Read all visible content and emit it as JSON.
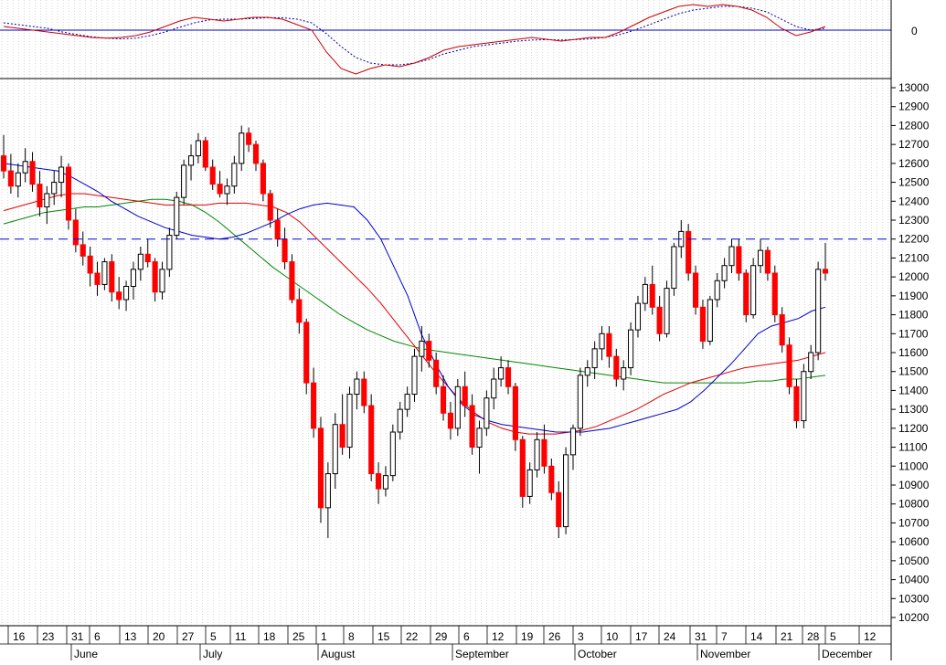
{
  "colors": {
    "grid": "#bcbcbc",
    "up_fill": "#ffffff",
    "down_fill": "#ff0000",
    "wick": "#000000",
    "ma_fast": "#0000cc",
    "ma_mid": "#dd0000",
    "ma_slow": "#008800",
    "level_line": "#0000cc",
    "osc_line": "#cc0000",
    "osc_signal": "#0000aa"
  },
  "chart_data": [
    {
      "type": "candlestick",
      "title": "",
      "ylim": [
        10150,
        13050
      ],
      "yticks": [
        10200,
        10300,
        10400,
        10500,
        10600,
        10700,
        10800,
        10900,
        11000,
        11100,
        11200,
        11300,
        11400,
        11500,
        11600,
        11700,
        11800,
        11900,
        12000,
        12100,
        12200,
        12300,
        12400,
        12500,
        12600,
        12700,
        12800,
        12900,
        13000
      ],
      "week_labels": [
        "16",
        "23",
        "31",
        "6",
        "13",
        "20",
        "27",
        "5",
        "11",
        "18",
        "25",
        "1",
        "8",
        "15",
        "22",
        "29",
        "6",
        "12",
        "19",
        "26",
        "3",
        "10",
        "17",
        "24",
        "31",
        "7",
        "14",
        "21",
        "28",
        "5",
        "12"
      ],
      "month_labels": [
        "June",
        "July",
        "August",
        "September",
        "October",
        "November",
        "December"
      ],
      "horizontal_level": 12200,
      "candles": [
        [
          12640,
          12750,
          12520,
          12560
        ],
        [
          12560,
          12650,
          12440,
          12480
        ],
        [
          12480,
          12600,
          12420,
          12550
        ],
        [
          12550,
          12680,
          12500,
          12610
        ],
        [
          12610,
          12660,
          12450,
          12490
        ],
        [
          12490,
          12560,
          12320,
          12370
        ],
        [
          12370,
          12480,
          12280,
          12440
        ],
        [
          12440,
          12560,
          12380,
          12500
        ],
        [
          12500,
          12640,
          12420,
          12580
        ],
        [
          12580,
          12600,
          12250,
          12300
        ],
        [
          12300,
          12360,
          12130,
          12170
        ],
        [
          12170,
          12240,
          12060,
          12110
        ],
        [
          12110,
          12160,
          11950,
          12020
        ],
        [
          12020,
          12080,
          11900,
          11960
        ],
        [
          11960,
          12100,
          11930,
          12080
        ],
        [
          12080,
          12120,
          11870,
          11920
        ],
        [
          11920,
          12000,
          11830,
          11880
        ],
        [
          11880,
          11980,
          11820,
          11950
        ],
        [
          11950,
          12080,
          11880,
          12040
        ],
        [
          12040,
          12160,
          11980,
          12120
        ],
        [
          12120,
          12200,
          12050,
          12080
        ],
        [
          12080,
          12100,
          11870,
          11920
        ],
        [
          11920,
          12080,
          11880,
          12040
        ],
        [
          12040,
          12260,
          12000,
          12220
        ],
        [
          12220,
          12450,
          12200,
          12420
        ],
        [
          12420,
          12620,
          12380,
          12590
        ],
        [
          12590,
          12700,
          12510,
          12640
        ],
        [
          12640,
          12760,
          12600,
          12720
        ],
        [
          12720,
          12740,
          12560,
          12580
        ],
        [
          12580,
          12620,
          12460,
          12490
        ],
        [
          12490,
          12560,
          12420,
          12440
        ],
        [
          12440,
          12520,
          12380,
          12480
        ],
        [
          12480,
          12640,
          12440,
          12600
        ],
        [
          12600,
          12800,
          12560,
          12760
        ],
        [
          12760,
          12790,
          12660,
          12700
        ],
        [
          12700,
          12720,
          12560,
          12600
        ],
        [
          12600,
          12620,
          12400,
          12440
        ],
        [
          12440,
          12460,
          12260,
          12300
        ],
        [
          12300,
          12360,
          12160,
          12200
        ],
        [
          12200,
          12260,
          12040,
          12080
        ],
        [
          12080,
          12120,
          11860,
          11880
        ],
        [
          11880,
          11940,
          11700,
          11760
        ],
        [
          11760,
          11780,
          11380,
          11440
        ],
        [
          11440,
          11520,
          11150,
          11200
        ],
        [
          11200,
          11260,
          10700,
          10780
        ],
        [
          10780,
          11020,
          10620,
          10960
        ],
        [
          10960,
          11280,
          10880,
          11220
        ],
        [
          11220,
          11380,
          11060,
          11100
        ],
        [
          11100,
          11420,
          11040,
          11380
        ],
        [
          11380,
          11500,
          11300,
          11460
        ],
        [
          11460,
          11500,
          11280,
          11320
        ],
        [
          11320,
          11380,
          10920,
          10960
        ],
        [
          10960,
          11020,
          10800,
          10880
        ],
        [
          10880,
          11000,
          10840,
          10950
        ],
        [
          10950,
          11220,
          10920,
          11180
        ],
        [
          11180,
          11340,
          11140,
          11300
        ],
        [
          11300,
          11420,
          11260,
          11380
        ],
        [
          11380,
          11620,
          11340,
          11580
        ],
        [
          11580,
          11740,
          11500,
          11660
        ],
        [
          11660,
          11700,
          11520,
          11560
        ],
        [
          11560,
          11600,
          11380,
          11420
        ],
        [
          11420,
          11480,
          11240,
          11280
        ],
        [
          11280,
          11340,
          11140,
          11200
        ],
        [
          11200,
          11460,
          11160,
          11420
        ],
        [
          11420,
          11500,
          11260,
          11320
        ],
        [
          11320,
          11380,
          11060,
          11100
        ],
        [
          11100,
          11240,
          10960,
          11200
        ],
        [
          11200,
          11400,
          11160,
          11360
        ],
        [
          11360,
          11520,
          11300,
          11460
        ],
        [
          11460,
          11580,
          11420,
          11520
        ],
        [
          11520,
          11560,
          11380,
          11420
        ],
        [
          11420,
          11440,
          11080,
          11140
        ],
        [
          11140,
          11160,
          10780,
          10840
        ],
        [
          10840,
          11020,
          10800,
          10980
        ],
        [
          10980,
          11180,
          10940,
          11140
        ],
        [
          11140,
          11220,
          10960,
          11000
        ],
        [
          11000,
          11040,
          10820,
          10860
        ],
        [
          10860,
          10920,
          10620,
          10680
        ],
        [
          10680,
          11100,
          10640,
          11060
        ],
        [
          11060,
          11220,
          10980,
          11200
        ],
        [
          11200,
          11520,
          11160,
          11480
        ],
        [
          11480,
          11560,
          11420,
          11520
        ],
        [
          11520,
          11660,
          11460,
          11620
        ],
        [
          11620,
          11740,
          11560,
          11700
        ],
        [
          11700,
          11740,
          11520,
          11580
        ],
        [
          11580,
          11620,
          11420,
          11460
        ],
        [
          11460,
          11560,
          11400,
          11520
        ],
        [
          11520,
          11760,
          11480,
          11720
        ],
        [
          11720,
          11900,
          11680,
          11860
        ],
        [
          11860,
          12000,
          11820,
          11960
        ],
        [
          11960,
          12060,
          11800,
          11840
        ],
        [
          11840,
          11900,
          11660,
          11700
        ],
        [
          11700,
          11980,
          11680,
          11940
        ],
        [
          11940,
          12180,
          11900,
          12160
        ],
        [
          12160,
          12300,
          12100,
          12240
        ],
        [
          12240,
          12280,
          11980,
          12020
        ],
        [
          12020,
          12060,
          11800,
          11840
        ],
        [
          11840,
          11880,
          11620,
          11660
        ],
        [
          11660,
          11900,
          11640,
          11880
        ],
        [
          11880,
          12020,
          11840,
          11980
        ],
        [
          11980,
          12100,
          11940,
          12060
        ],
        [
          12060,
          12200,
          12020,
          12160
        ],
        [
          12160,
          12200,
          11980,
          12020
        ],
        [
          12020,
          12040,
          11760,
          11800
        ],
        [
          11800,
          12100,
          11780,
          12060
        ],
        [
          12060,
          12200,
          12020,
          12140
        ],
        [
          12140,
          12160,
          11980,
          12020
        ],
        [
          12020,
          12060,
          11760,
          11800
        ],
        [
          11800,
          11840,
          11600,
          11640
        ],
        [
          11640,
          11680,
          11380,
          11420
        ],
        [
          11420,
          11460,
          11200,
          11240
        ],
        [
          11240,
          11540,
          11200,
          11500
        ],
        [
          11500,
          11640,
          11460,
          11600
        ],
        [
          11600,
          12080,
          11560,
          12040
        ],
        [
          12040,
          12180,
          11980,
          12020
        ]
      ],
      "ma_fast": [
        12600,
        12590,
        12580,
        12570,
        12560,
        12530,
        12490,
        12450,
        12400,
        12360,
        12320,
        12290,
        12260,
        12240,
        12220,
        12210,
        12200,
        12210,
        12230,
        12260,
        12290,
        12330,
        12360,
        12380,
        12390,
        12380,
        12370,
        12300,
        12200,
        12050,
        11900,
        11700,
        11550,
        11420,
        11330,
        11270,
        11240,
        11220,
        11210,
        11200,
        11190,
        11180,
        11180,
        11180,
        11190,
        11200,
        11220,
        11240,
        11260,
        11280,
        11300,
        11340,
        11400,
        11470,
        11540,
        11620,
        11700,
        11740,
        11760,
        11780,
        11820,
        11840
      ],
      "ma_mid": [
        12350,
        12370,
        12390,
        12410,
        12430,
        12440,
        12440,
        12430,
        12420,
        12410,
        12400,
        12390,
        12380,
        12380,
        12380,
        12380,
        12390,
        12390,
        12390,
        12380,
        12370,
        12340,
        12290,
        12220,
        12150,
        12080,
        12010,
        11940,
        11860,
        11770,
        11680,
        11590,
        11500,
        11420,
        11340,
        11280,
        11230,
        11200,
        11180,
        11170,
        11170,
        11170,
        11180,
        11190,
        11210,
        11240,
        11270,
        11300,
        11340,
        11380,
        11410,
        11440,
        11460,
        11480,
        11500,
        11520,
        11530,
        11540,
        11550,
        11560,
        11580,
        11600
      ],
      "ma_slow": [
        12280,
        12300,
        12320,
        12340,
        12350,
        12360,
        12370,
        12370,
        12380,
        12390,
        12400,
        12410,
        12410,
        12400,
        12380,
        12340,
        12290,
        12230,
        12170,
        12110,
        12050,
        12000,
        11950,
        11900,
        11850,
        11800,
        11760,
        11720,
        11690,
        11660,
        11640,
        11620,
        11610,
        11600,
        11590,
        11580,
        11570,
        11560,
        11550,
        11540,
        11530,
        11520,
        11510,
        11500,
        11490,
        11480,
        11470,
        11460,
        11450,
        11440,
        11440,
        11440,
        11440,
        11440,
        11440,
        11440,
        11450,
        11450,
        11460,
        11460,
        11470,
        11480
      ]
    },
    {
      "type": "line",
      "title": "",
      "zero_label": "0",
      "ylim": [
        -1.4,
        0.9
      ],
      "series_line": [
        0.1,
        0.05,
        0.0,
        -0.05,
        -0.1,
        -0.15,
        -0.2,
        -0.22,
        -0.2,
        -0.15,
        -0.05,
        0.1,
        0.25,
        0.35,
        0.3,
        0.25,
        0.3,
        0.35,
        0.35,
        0.3,
        0.15,
        0.0,
        -0.6,
        -1.05,
        -1.2,
        -1.05,
        -0.95,
        -1.0,
        -0.9,
        -0.75,
        -0.55,
        -0.45,
        -0.4,
        -0.35,
        -0.3,
        -0.25,
        -0.2,
        -0.25,
        -0.3,
        -0.25,
        -0.2,
        -0.2,
        -0.05,
        0.15,
        0.35,
        0.5,
        0.65,
        0.7,
        0.65,
        0.7,
        0.65,
        0.55,
        0.35,
        0.05,
        -0.15,
        -0.05,
        0.1
      ],
      "series_signal": [
        0.2,
        0.15,
        0.1,
        0.05,
        -0.05,
        -0.12,
        -0.18,
        -0.22,
        -0.24,
        -0.22,
        -0.15,
        -0.05,
        0.08,
        0.2,
        0.28,
        0.3,
        0.3,
        0.32,
        0.34,
        0.34,
        0.3,
        0.2,
        -0.1,
        -0.45,
        -0.75,
        -0.9,
        -0.95,
        -0.95,
        -0.9,
        -0.8,
        -0.65,
        -0.55,
        -0.45,
        -0.4,
        -0.35,
        -0.3,
        -0.27,
        -0.26,
        -0.27,
        -0.26,
        -0.24,
        -0.2,
        -0.12,
        0.0,
        0.15,
        0.3,
        0.45,
        0.55,
        0.6,
        0.65,
        0.65,
        0.6,
        0.5,
        0.3,
        0.1,
        0.0,
        0.05
      ]
    }
  ]
}
